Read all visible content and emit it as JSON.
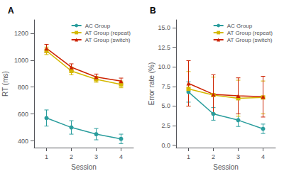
{
  "chart_data": [
    {
      "type": "line",
      "title": "A",
      "xlabel": "Session",
      "ylabel": "RT (ms)",
      "x": [
        1,
        2,
        3,
        4
      ],
      "xlim": [
        0.5,
        4.5
      ],
      "xticks": [
        1,
        2,
        3,
        4
      ],
      "ylim": [
        350,
        1300
      ],
      "yticks": [
        400,
        600,
        800,
        1000,
        1200
      ],
      "grid": false,
      "legend": "upper right",
      "series": [
        {
          "name": "AC Group",
          "color": "#2A9D9D",
          "marker": "circle",
          "values": [
            570,
            500,
            450,
            415
          ],
          "errors": [
            60,
            50,
            42,
            35
          ]
        },
        {
          "name": "AT Group (repeat)",
          "color": "#D4B800",
          "marker": "square",
          "values": [
            1070,
            920,
            858,
            820
          ],
          "errors": [
            28,
            28,
            22,
            25
          ]
        },
        {
          "name": "AT Group (switch)",
          "color": "#CC2200",
          "marker": "triangle",
          "values": [
            1088,
            948,
            875,
            845
          ],
          "errors": [
            30,
            25,
            22,
            22
          ]
        }
      ]
    },
    {
      "type": "line",
      "title": "B",
      "xlabel": "Session",
      "ylabel": "Error rate (%)",
      "x": [
        1,
        2,
        3,
        4
      ],
      "xlim": [
        0.5,
        4.5
      ],
      "xticks": [
        1,
        2,
        3,
        4
      ],
      "ylim": [
        -0.3,
        16.0
      ],
      "yticks": [
        {
          "value": 0,
          "label": "0.0"
        },
        2.5,
        {
          "value": 5.0,
          "label": "5.0"
        },
        7.5,
        {
          "value": 10.0,
          "label": "10.0"
        },
        12.5,
        {
          "value": 15.0,
          "label": "15.0"
        }
      ],
      "grid": false,
      "legend": "upper right",
      "series": [
        {
          "name": "AC Group",
          "color": "#2A9D9D",
          "marker": "circle",
          "values": [
            6.8,
            4.0,
            3.2,
            2.1
          ],
          "errors": [
            1.3,
            0.8,
            0.8,
            0.6
          ]
        },
        {
          "name": "AT Group (repeat)",
          "color": "#D4B800",
          "marker": "square",
          "values": [
            7.2,
            6.4,
            6.0,
            6.1
          ],
          "errors": [
            2.2,
            2.3,
            2.3,
            2.1
          ]
        },
        {
          "name": "AT Group (switch)",
          "color": "#CC2200",
          "marker": "triangle",
          "values": [
            7.9,
            6.5,
            6.3,
            6.2
          ],
          "errors": [
            2.9,
            2.5,
            2.3,
            2.6
          ]
        }
      ]
    }
  ]
}
